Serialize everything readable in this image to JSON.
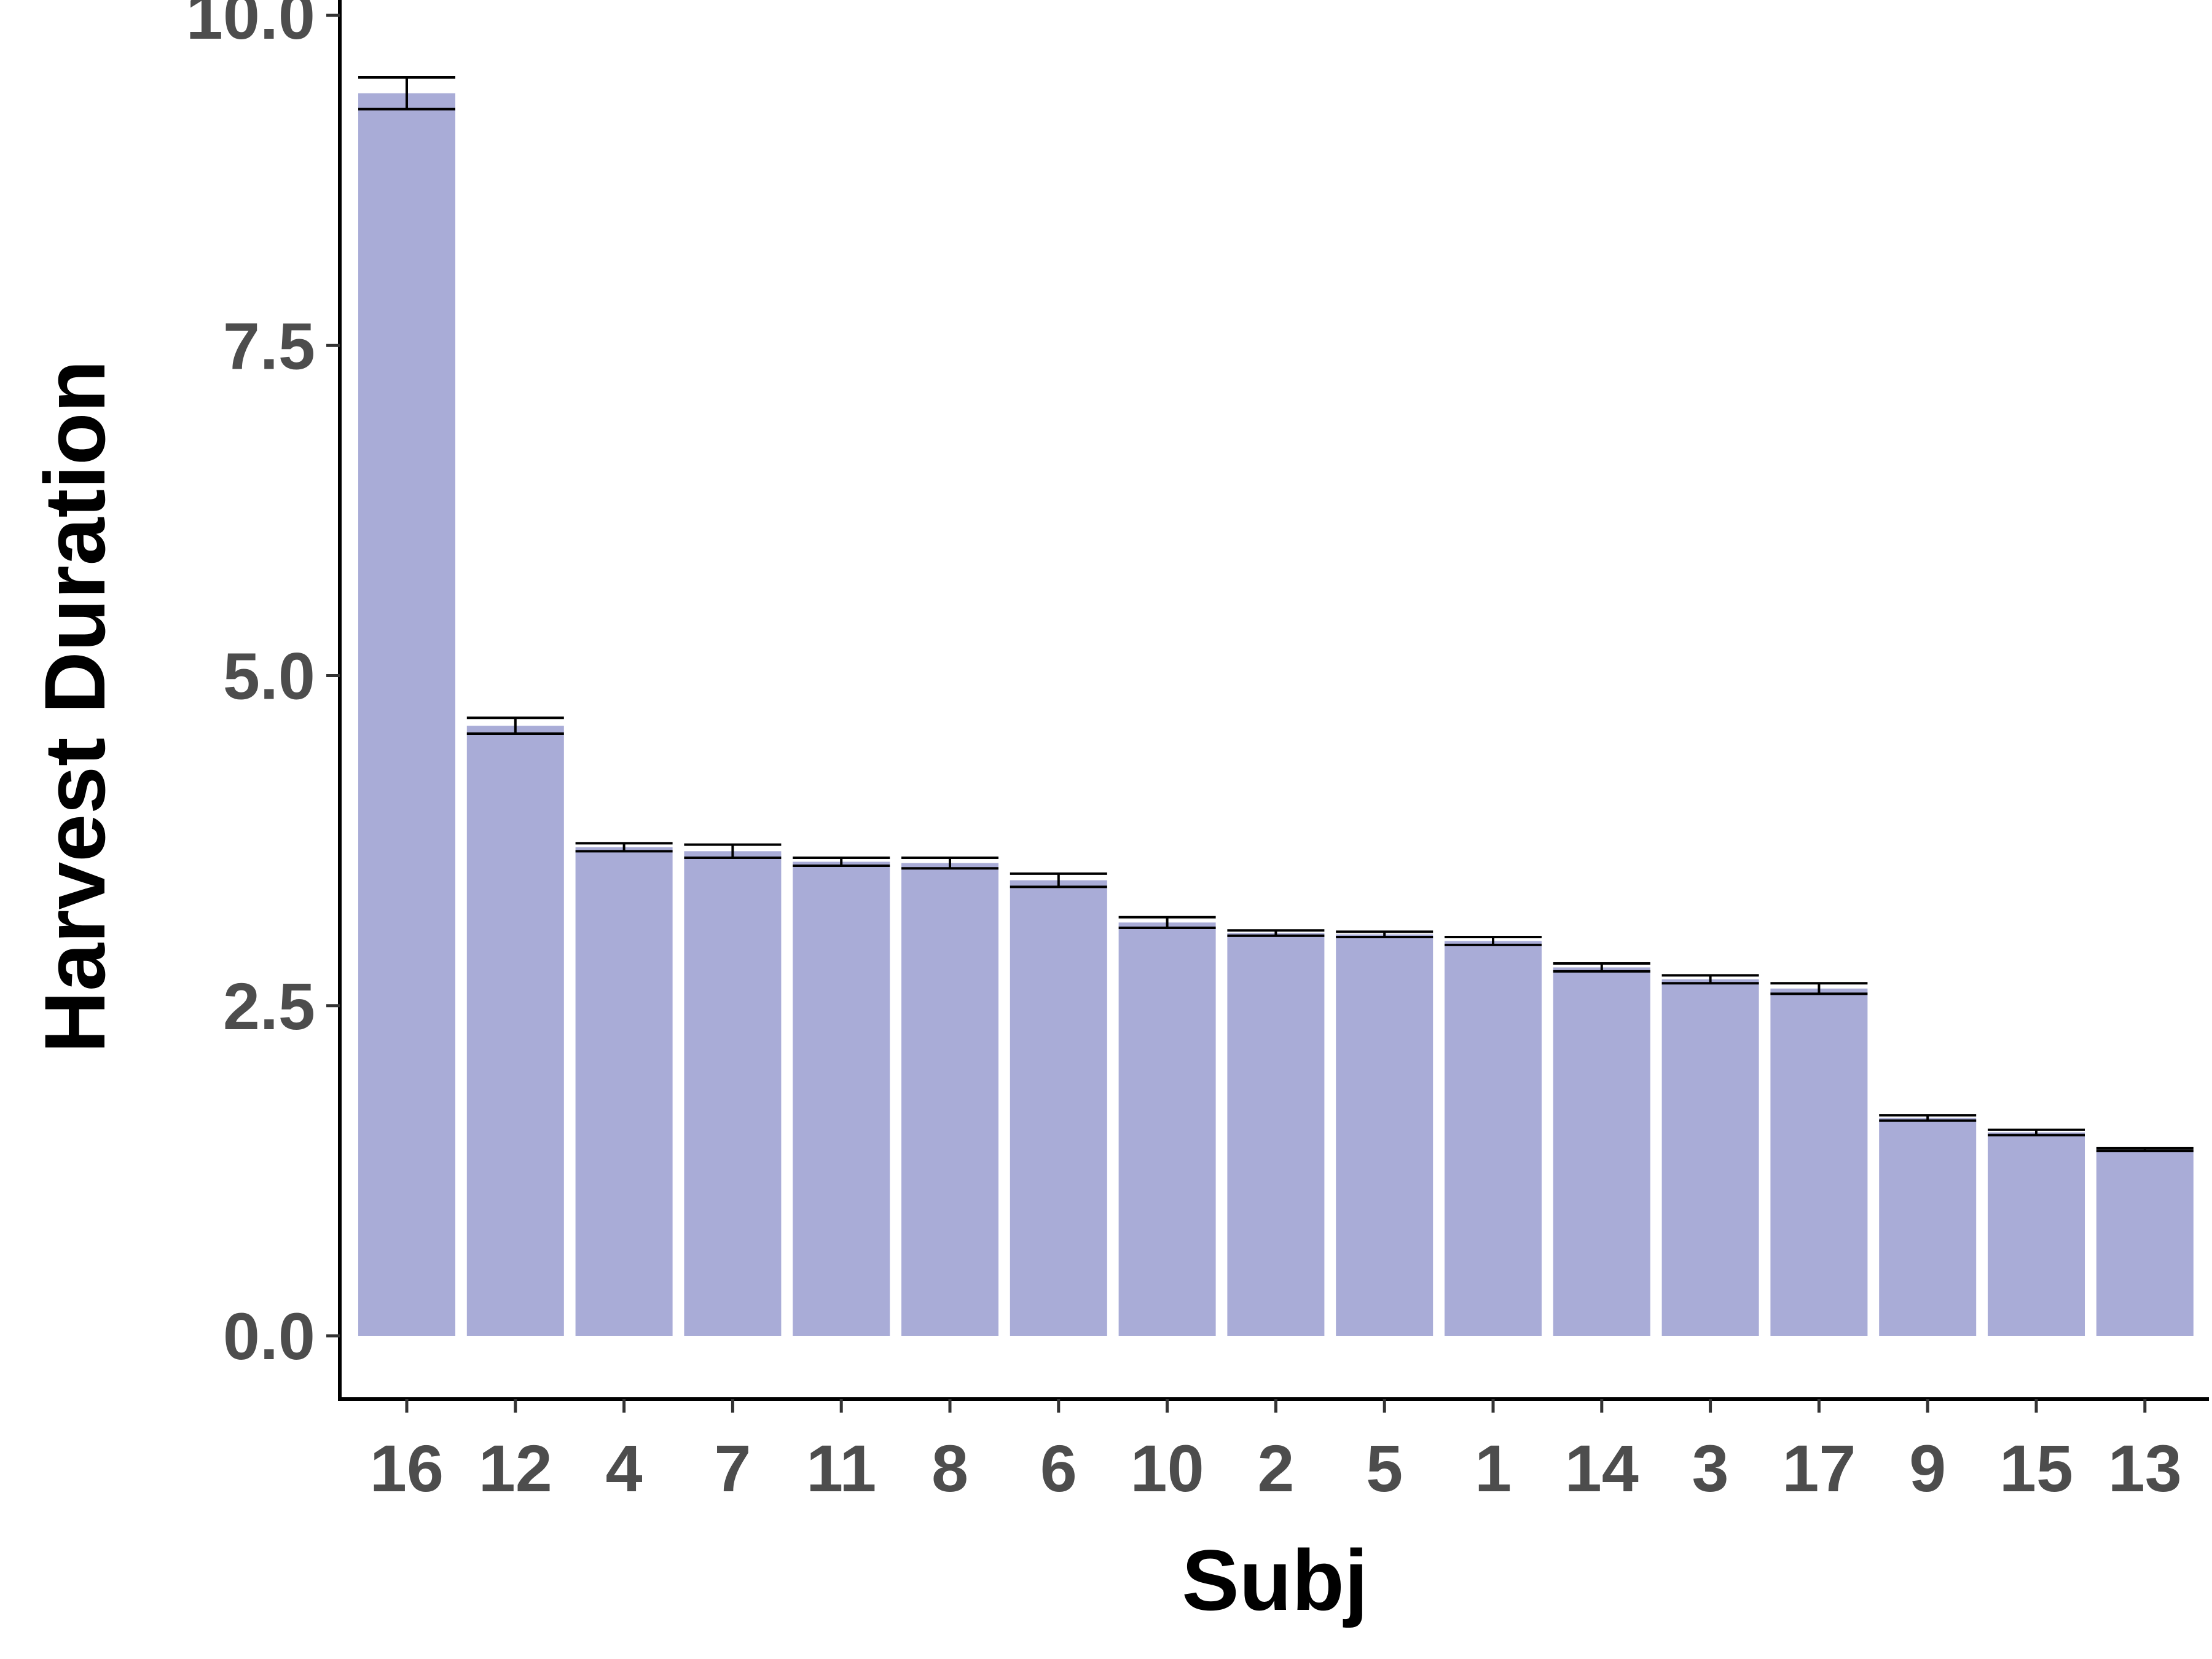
{
  "chart_data": {
    "type": "bar",
    "xlabel": "Subj",
    "ylabel": "Harvest Duration",
    "ylim": [
      0,
      10
    ],
    "yticks": [
      "0.0",
      "2.5",
      "5.0",
      "7.5",
      "10.0"
    ],
    "categories": [
      "16",
      "12",
      "4",
      "7",
      "11",
      "8",
      "6",
      "10",
      "2",
      "5",
      "1",
      "14",
      "3",
      "17",
      "9",
      "15",
      "13"
    ],
    "values": [
      9.41,
      4.62,
      3.7,
      3.67,
      3.59,
      3.58,
      3.45,
      3.13,
      3.05,
      3.04,
      2.99,
      2.79,
      2.7,
      2.63,
      1.65,
      1.54,
      1.41
    ],
    "error": [
      0.12,
      0.06,
      0.03,
      0.05,
      0.03,
      0.04,
      0.05,
      0.04,
      0.02,
      0.02,
      0.03,
      0.03,
      0.03,
      0.04,
      0.02,
      0.02,
      0.01
    ],
    "bar_color": "#a9acd7",
    "grid": false,
    "legend": "none"
  }
}
